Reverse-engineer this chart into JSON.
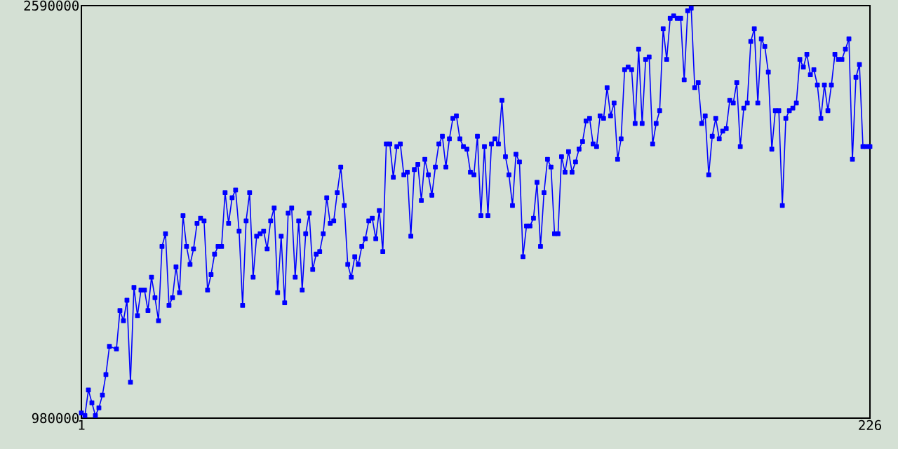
{
  "chart_data": {
    "type": "line",
    "marker": "square",
    "line_style": "solid",
    "xlim": [
      1,
      226
    ],
    "xticks": [
      1,
      226
    ],
    "ylim": [
      980000,
      2590000
    ],
    "yticks": [
      980000,
      2590000
    ],
    "x": [
      1,
      2,
      3,
      4,
      5,
      6,
      7,
      8,
      9,
      11,
      12,
      13,
      14,
      15,
      16,
      17,
      18,
      19,
      20,
      21,
      22,
      23,
      24,
      25,
      26,
      27,
      28,
      29,
      30,
      31,
      32,
      33,
      34,
      35,
      36,
      37,
      38,
      39,
      40,
      41,
      42,
      43,
      44,
      45,
      46,
      47,
      48,
      49,
      50,
      51,
      52,
      53,
      54,
      55,
      56,
      57,
      58,
      59,
      60,
      61,
      62,
      63,
      64,
      65,
      66,
      67,
      68,
      69,
      70,
      71,
      72,
      73,
      74,
      75,
      76,
      77,
      78,
      79,
      80,
      81,
      82,
      83,
      84,
      85,
      86,
      87,
      88,
      89,
      90,
      91,
      92,
      93,
      94,
      95,
      96,
      97,
      98,
      99,
      100,
      101,
      102,
      103,
      104,
      105,
      106,
      107,
      108,
      109,
      110,
      111,
      112,
      113,
      114,
      115,
      116,
      117,
      118,
      119,
      120,
      121,
      122,
      123,
      124,
      125,
      126,
      127,
      128,
      129,
      130,
      131,
      132,
      133,
      134,
      135,
      136,
      137,
      138,
      139,
      140,
      141,
      142,
      143,
      144,
      145,
      146,
      147,
      148,
      149,
      150,
      151,
      152,
      153,
      154,
      155,
      156,
      157,
      158,
      159,
      160,
      161,
      162,
      163,
      164,
      165,
      166,
      167,
      168,
      169,
      170,
      171,
      172,
      173,
      174,
      175,
      176,
      177,
      178,
      179,
      180,
      181,
      182,
      183,
      184,
      185,
      186,
      187,
      188,
      189,
      190,
      191,
      192,
      193,
      194,
      195,
      196,
      197,
      198,
      199,
      200,
      201,
      202,
      203,
      204,
      205,
      206,
      207,
      208,
      209,
      210,
      211,
      212,
      213,
      214,
      215,
      216,
      217,
      218,
      219,
      220,
      221,
      222,
      223,
      224,
      225,
      226
    ],
    "series": [
      {
        "color": "#0000ff",
        "values": [
          1000000,
          990000,
          1090000,
          1040000,
          990000,
          1020000,
          1070000,
          1150000,
          1260000,
          1250000,
          1400000,
          1360000,
          1440000,
          1120000,
          1490000,
          1380000,
          1480000,
          1480000,
          1400000,
          1530000,
          1450000,
          1360000,
          1650000,
          1700000,
          1420000,
          1450000,
          1570000,
          1470000,
          1770000,
          1650000,
          1580000,
          1640000,
          1740000,
          1760000,
          1750000,
          1480000,
          1540000,
          1620000,
          1650000,
          1650000,
          1860000,
          1740000,
          1840000,
          1870000,
          1710000,
          1420000,
          1750000,
          1860000,
          1530000,
          1690000,
          1700000,
          1710000,
          1640000,
          1750000,
          1800000,
          1470000,
          1690000,
          1430000,
          1780000,
          1800000,
          1530000,
          1750000,
          1480000,
          1700000,
          1780000,
          1560000,
          1620000,
          1630000,
          1700000,
          1840000,
          1740000,
          1750000,
          1860000,
          1960000,
          1810000,
          1580000,
          1530000,
          1610000,
          1580000,
          1650000,
          1680000,
          1750000,
          1760000,
          1680000,
          1790000,
          1630000,
          2050000,
          2050000,
          1920000,
          2040000,
          2050000,
          1930000,
          1940000,
          1690000,
          1950000,
          1970000,
          1830000,
          1990000,
          1930000,
          1850000,
          1960000,
          2050000,
          2080000,
          1960000,
          2070000,
          2150000,
          2160000,
          2070000,
          2040000,
          2030000,
          1940000,
          1930000,
          2080000,
          1770000,
          2040000,
          1770000,
          2050000,
          2070000,
          2050000,
          2220000,
          2000000,
          1930000,
          1810000,
          2010000,
          1980000,
          1610000,
          1730000,
          1730000,
          1760000,
          1900000,
          1650000,
          1860000,
          1990000,
          1960000,
          1700000,
          1700000,
          2000000,
          1940000,
          2020000,
          1940000,
          1980000,
          2030000,
          2060000,
          2140000,
          2150000,
          2050000,
          2040000,
          2160000,
          2150000,
          2270000,
          2160000,
          2210000,
          1990000,
          2070000,
          2340000,
          2350000,
          2340000,
          2130000,
          2420000,
          2130000,
          2380000,
          2390000,
          2050000,
          2130000,
          2180000,
          2500000,
          2380000,
          2540000,
          2550000,
          2540000,
          2540000,
          2300000,
          2570000,
          2580000,
          2270000,
          2290000,
          2130000,
          2160000,
          1930000,
          2080000,
          2150000,
          2070000,
          2100000,
          2110000,
          2220000,
          2210000,
          2290000,
          2040000,
          2190000,
          2210000,
          2450000,
          2500000,
          2210000,
          2460000,
          2430000,
          2330000,
          2030000,
          2180000,
          2180000,
          1810000,
          2150000,
          2180000,
          2190000,
          2210000,
          2380000,
          2350000,
          2400000,
          2320000,
          2340000,
          2280000,
          2150000,
          2280000,
          2180000,
          2280000,
          2400000,
          2380000,
          2380000,
          2420000,
          2460000,
          1990000,
          2310000,
          2360000,
          2040000,
          2040000,
          2040000
        ]
      }
    ]
  }
}
